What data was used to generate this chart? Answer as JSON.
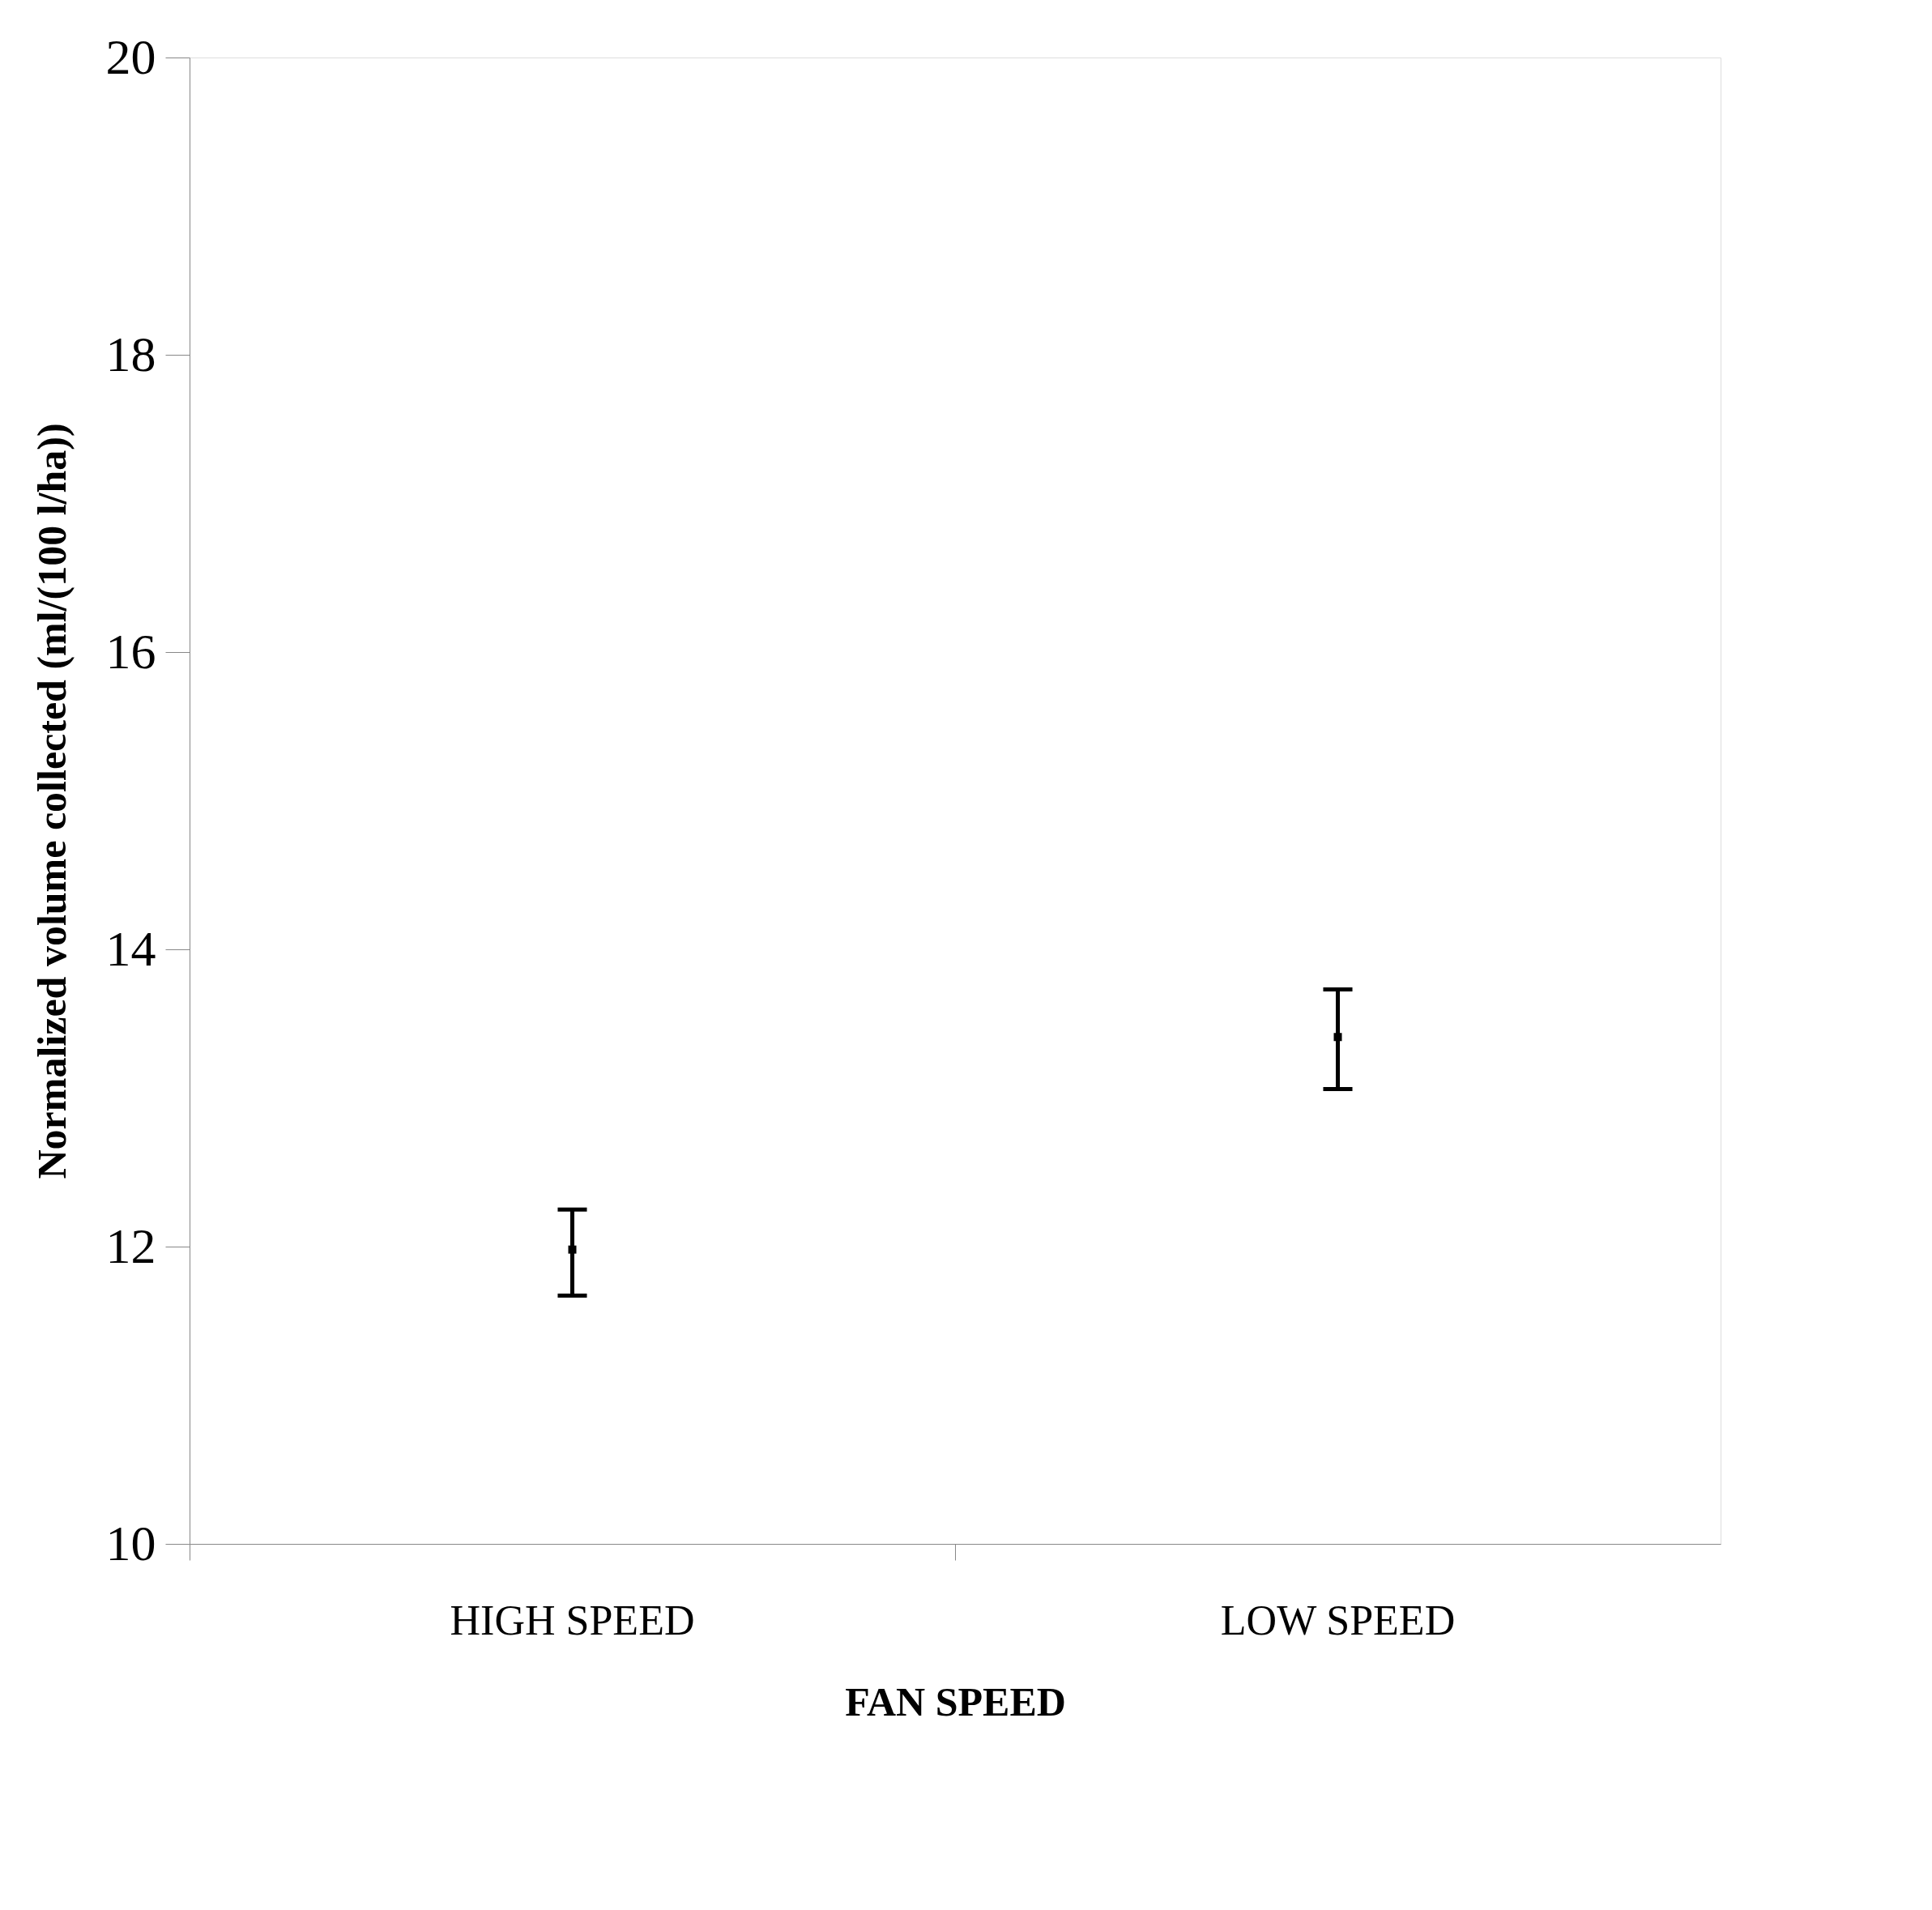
{
  "chart_data": {
    "type": "scatter",
    "xlabel": "FAN SPEED",
    "ylabel": "Normalized volume  collected (ml/(100 l/ha))",
    "categories": [
      "HIGH SPEED",
      "LOW SPEED"
    ],
    "values": [
      11.98,
      13.41
    ],
    "errors": [
      [
        11.67,
        12.25
      ],
      [
        13.06,
        13.73
      ]
    ],
    "color": "#000000",
    "ylim": [
      10,
      20
    ],
    "yticks": [
      10,
      12,
      14,
      16,
      18,
      20
    ],
    "grid": false,
    "legend": false
  }
}
